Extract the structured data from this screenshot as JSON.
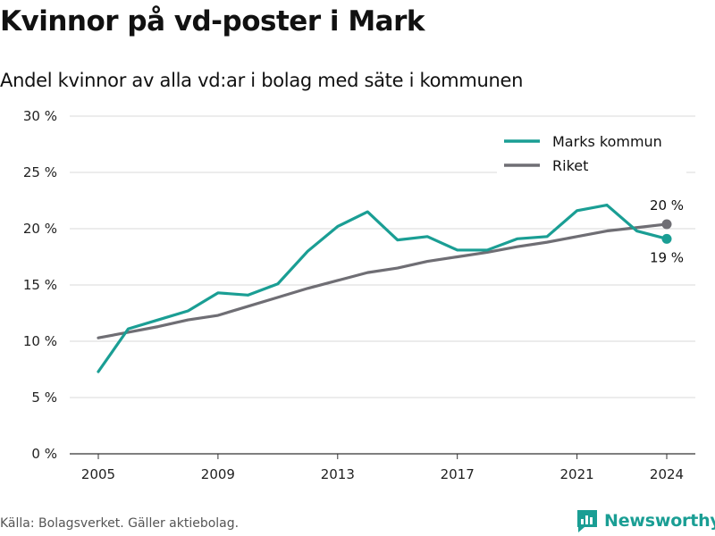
{
  "title": "Kvinnor på vd-poster i Mark",
  "subtitle": "Andel kvinnor av alla vd:ar i bolag med säte i kommunen",
  "source": "Källa: Bolagsverket. Gäller aktiebolag.",
  "brand": "Newsworthy",
  "colors": {
    "marks": "#1a9e94",
    "riket": "#6f6e74",
    "grid": "#d9d9d9"
  },
  "chart_data": {
    "type": "line",
    "x": [
      2005,
      2006,
      2007,
      2008,
      2009,
      2010,
      2011,
      2012,
      2013,
      2014,
      2015,
      2016,
      2017,
      2018,
      2019,
      2020,
      2021,
      2022,
      2023,
      2024
    ],
    "x_ticks": [
      2005,
      2009,
      2013,
      2017,
      2021,
      2024
    ],
    "x_tick_labels": [
      "2005",
      "2009",
      "2013",
      "2017",
      "2021",
      "2024"
    ],
    "ylim": [
      0,
      30
    ],
    "y_ticks": [
      0,
      5,
      10,
      15,
      20,
      25,
      30
    ],
    "y_tick_labels": [
      "0 %",
      "5 %",
      "10 %",
      "15 %",
      "20 %",
      "25 %",
      "30 %"
    ],
    "grid": true,
    "legend_position": "top-right",
    "series": [
      {
        "name": "Marks kommun",
        "color": "#1a9e94",
        "values": [
          7.3,
          11.1,
          11.9,
          12.7,
          14.3,
          14.1,
          15.1,
          18.0,
          20.2,
          21.5,
          19.0,
          19.3,
          18.1,
          18.1,
          19.1,
          19.3,
          21.6,
          22.1,
          19.8,
          19.1
        ],
        "end_label": "19 %"
      },
      {
        "name": "Riket",
        "color": "#6f6e74",
        "values": [
          10.3,
          10.8,
          11.3,
          11.9,
          12.3,
          13.1,
          13.9,
          14.7,
          15.4,
          16.1,
          16.5,
          17.1,
          17.5,
          17.9,
          18.4,
          18.8,
          19.3,
          19.8,
          20.1,
          20.4
        ],
        "end_label": "20 %"
      }
    ]
  }
}
